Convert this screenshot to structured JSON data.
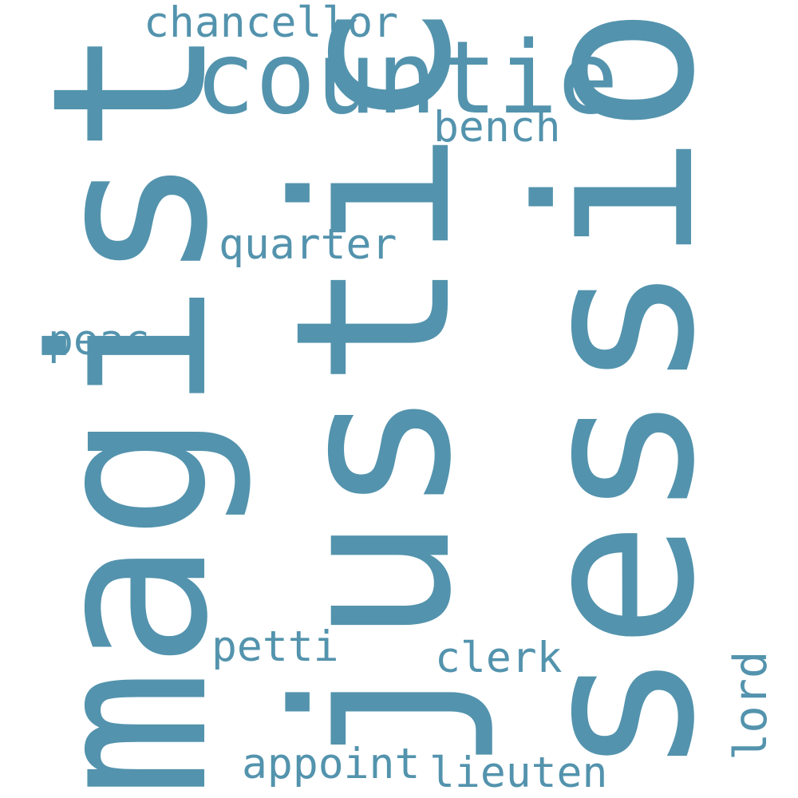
{
  "color": "#5393ad",
  "words": {
    "magistr": "magistr",
    "justic": "justic",
    "session": "session",
    "countie": "countie",
    "chancellor": "chancellor",
    "bench": "bench",
    "quarter": "quarter",
    "peac": "peac",
    "petti": "petti",
    "clerk": "clerk",
    "appoint": "appoint",
    "lieuten": "lieuten",
    "lord": "lord"
  }
}
